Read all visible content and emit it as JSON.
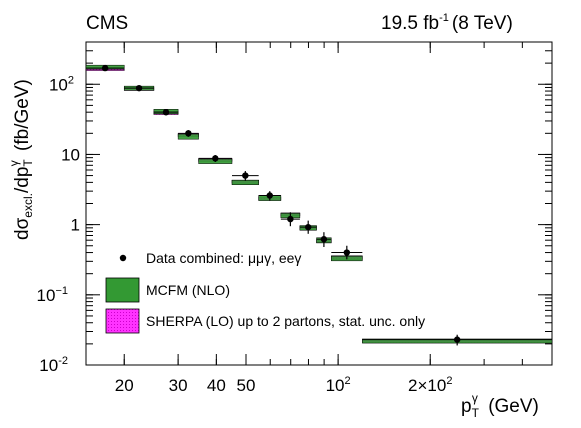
{
  "header": {
    "experiment": "CMS",
    "lumi_value": "19.5 fb",
    "lumi_exp": "-1",
    "lumi_energy": "(8 TeV)"
  },
  "chart_data": {
    "type": "scatter",
    "title": "",
    "ylabel": "dσ_excl./dp_T^γ (fb/GeV)",
    "xlabel": "p_T^γ (GeV)",
    "xscale": "log",
    "yscale": "log",
    "xlim": [
      15,
      500
    ],
    "ylim": [
      0.01,
      400
    ],
    "x_ticks": [
      {
        "value": 20,
        "label": "20"
      },
      {
        "value": 30,
        "label": "30"
      },
      {
        "value": 40,
        "label": "40"
      },
      {
        "value": 50,
        "label": "50"
      },
      {
        "value": 100,
        "label": "10",
        "sup": "2"
      },
      {
        "value": 200,
        "label": "2×10",
        "sup": "2"
      }
    ],
    "y_ticks": [
      {
        "value": 0.01,
        "label": "10",
        "sup": "-2"
      },
      {
        "value": 0.1,
        "label": "10",
        "sup": "−1"
      },
      {
        "value": 1,
        "label": "1",
        "sup": ""
      },
      {
        "value": 10,
        "label": "10",
        "sup": ""
      },
      {
        "value": 100,
        "label": "10",
        "sup": "2"
      }
    ],
    "grid": false,
    "legend_position": "bottom-left",
    "legend": [
      {
        "kind": "marker",
        "label": "Data combined: μμγ, eeγ"
      },
      {
        "kind": "band",
        "label": "MCFM (NLO)",
        "color": "#339933"
      },
      {
        "kind": "band",
        "label": "SHERPA (LO) up to 2 partons, stat. unc. only",
        "color": "#ff33ff"
      }
    ],
    "bins": [
      {
        "x_low": 15,
        "x_high": 20,
        "data": 170,
        "err_low": 15,
        "err_high": 15,
        "mcfm": 175,
        "mcfm_unc": 12,
        "sherpa": 165,
        "sherpa_unc": 8
      },
      {
        "x_low": 20,
        "x_high": 25,
        "data": 88,
        "err_low": 7,
        "err_high": 7,
        "mcfm": 88,
        "mcfm_unc": 6,
        "sherpa": 86,
        "sherpa_unc": 4
      },
      {
        "x_low": 25,
        "x_high": 30,
        "data": 40,
        "err_low": 4,
        "err_high": 4,
        "mcfm": 41,
        "mcfm_unc": 3,
        "sherpa": 39,
        "sherpa_unc": 2
      },
      {
        "x_low": 30,
        "x_high": 35,
        "data": 20,
        "err_low": 2.2,
        "err_high": 2.2,
        "mcfm": 18,
        "mcfm_unc": 1.5,
        "sherpa": 19,
        "sherpa_unc": 1
      },
      {
        "x_low": 35,
        "x_high": 45,
        "data": 8.8,
        "err_low": 1,
        "err_high": 1,
        "mcfm": 8,
        "mcfm_unc": 0.6,
        "sherpa": 8.4,
        "sherpa_unc": 0.4
      },
      {
        "x_low": 45,
        "x_high": 55,
        "data": 5,
        "err_low": 0.8,
        "err_high": 0.8,
        "mcfm": 4,
        "mcfm_unc": 0.3,
        "sherpa": 4.1,
        "sherpa_unc": 0.2
      },
      {
        "x_low": 55,
        "x_high": 65,
        "data": 2.6,
        "err_low": 0.4,
        "err_high": 0.4,
        "mcfm": 2.4,
        "mcfm_unc": 0.2,
        "sherpa": 2.35,
        "sherpa_unc": 0.12
      },
      {
        "x_low": 65,
        "x_high": 75,
        "data": 1.2,
        "err_low": 0.25,
        "err_high": 0.3,
        "mcfm": 1.35,
        "mcfm_unc": 0.1,
        "sherpa": 1.4,
        "sherpa_unc": 0.07
      },
      {
        "x_low": 75,
        "x_high": 85,
        "data": 0.92,
        "err_low": 0.18,
        "err_high": 0.22,
        "mcfm": 0.9,
        "mcfm_unc": 0.07,
        "sherpa": 0.9,
        "sherpa_unc": 0.05
      },
      {
        "x_low": 85,
        "x_high": 95,
        "data": 0.62,
        "err_low": 0.14,
        "err_high": 0.16,
        "mcfm": 0.6,
        "mcfm_unc": 0.05,
        "sherpa": 0.58,
        "sherpa_unc": 0.03
      },
      {
        "x_low": 95,
        "x_high": 120,
        "data": 0.4,
        "err_low": 0.08,
        "err_high": 0.1,
        "mcfm": 0.33,
        "mcfm_unc": 0.025,
        "sherpa": 0.34,
        "sherpa_unc": 0.02
      },
      {
        "x_low": 120,
        "x_high": 500,
        "data": 0.023,
        "err_low": 0.004,
        "err_high": 0.004,
        "mcfm": 0.022,
        "mcfm_unc": 0.0015,
        "sherpa": 0.022,
        "sherpa_unc": 0.001
      }
    ]
  }
}
